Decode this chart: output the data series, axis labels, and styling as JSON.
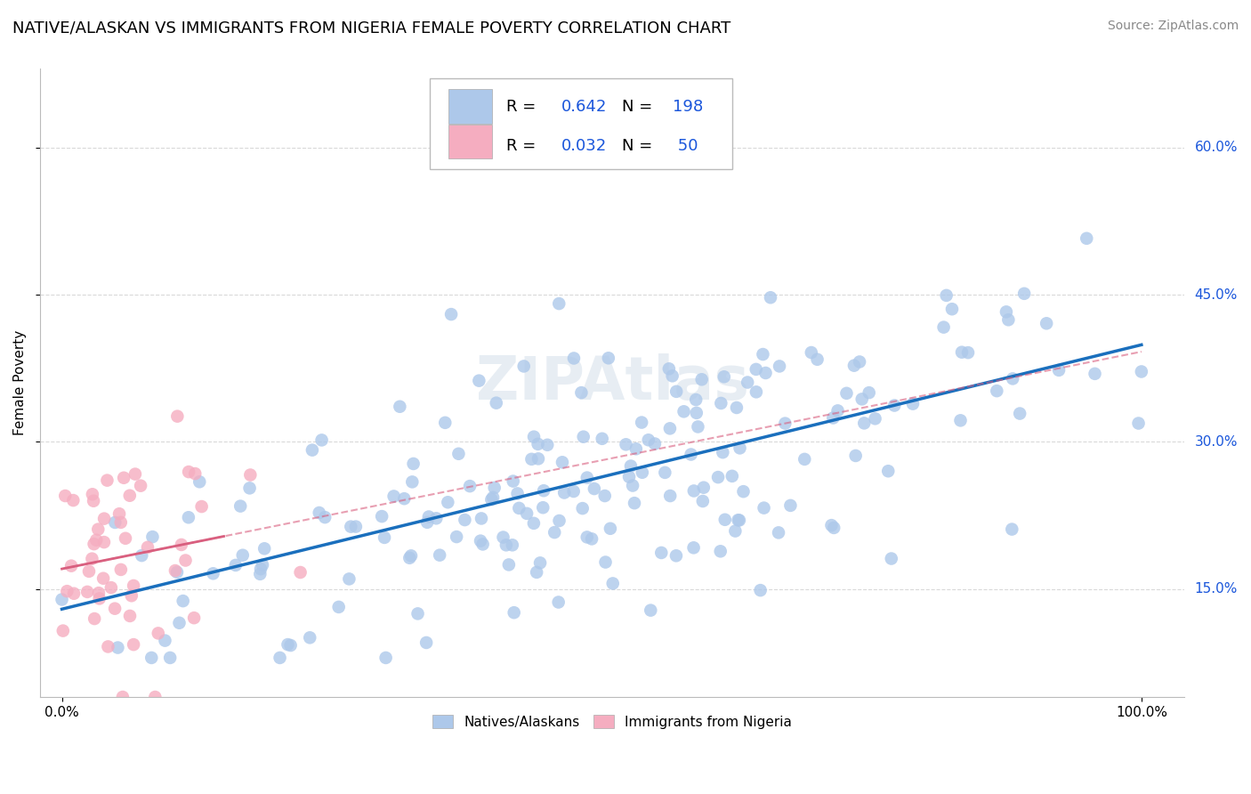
{
  "title": "NATIVE/ALASKAN VS IMMIGRANTS FROM NIGERIA FEMALE POVERTY CORRELATION CHART",
  "source": "Source: ZipAtlas.com",
  "ylabel": "Female Poverty",
  "legend_labels": [
    "Natives/Alaskans",
    "Immigrants from Nigeria"
  ],
  "native_color": "#adc8ea",
  "native_line_color": "#1a6fbd",
  "nigeria_color": "#f5adc0",
  "nigeria_line_color": "#d95f7f",
  "native_r": 0.642,
  "native_n": 198,
  "nigeria_r": 0.032,
  "nigeria_n": 50,
  "background_color": "#ffffff",
  "grid_color": "#d0d0d0",
  "n_label_color": "#1a56db",
  "title_fontsize": 13,
  "source_fontsize": 10,
  "axis_label_fontsize": 11,
  "tick_fontsize": 11,
  "legend_inner_fontsize": 13,
  "watermark": "ZIPAtlas",
  "y_ticks": [
    0.15,
    0.3,
    0.45,
    0.6
  ],
  "y_tick_labels": [
    "15.0%",
    "30.0%",
    "45.0%",
    "60.0%"
  ],
  "x_ticks": [
    0.0,
    1.0
  ],
  "x_tick_labels": [
    "0.0%",
    "100.0%"
  ],
  "xlim": [
    -0.02,
    1.04
  ],
  "ylim": [
    0.04,
    0.68
  ]
}
